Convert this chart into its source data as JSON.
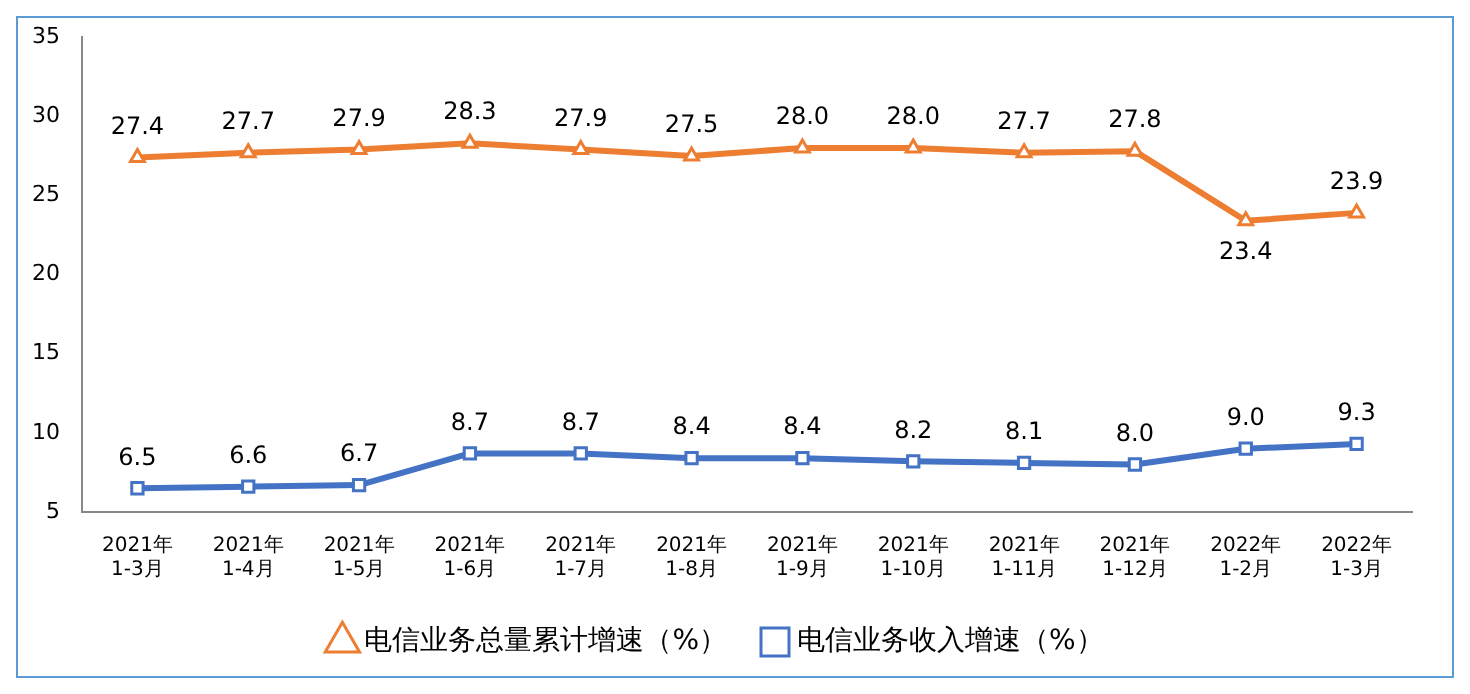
{
  "chart_data": {
    "type": "line",
    "categories": [
      "2021年\n1-3月",
      "2021年\n1-4月",
      "2021年\n1-5月",
      "2021年\n1-6月",
      "2021年\n1-7月",
      "2021年\n1-8月",
      "2021年\n1-9月",
      "2021年\n1-10月",
      "2021年\n1-11月",
      "2021年\n1-12月",
      "2022年\n1-2月",
      "2022年\n1-3月"
    ],
    "series": [
      {
        "name": "电信业务总量累计增速（%）",
        "color": "#ed7d31",
        "marker": "triangle",
        "values": [
          27.4,
          27.7,
          27.9,
          28.3,
          27.9,
          27.5,
          28.0,
          28.0,
          27.7,
          27.8,
          23.4,
          23.9
        ],
        "value_labels": [
          "27.4",
          "27.7",
          "27.9",
          "28.3",
          "27.9",
          "27.5",
          "28.0",
          "28.0",
          "27.7",
          "27.8",
          "23.4",
          "23.9"
        ]
      },
      {
        "name": "电信业务收入增速（%）",
        "color": "#4472c4",
        "marker": "square",
        "values": [
          6.5,
          6.6,
          6.7,
          8.7,
          8.7,
          8.4,
          8.4,
          8.2,
          8.1,
          8.0,
          9.0,
          9.3
        ],
        "value_labels": [
          "6.5",
          "6.6",
          "6.7",
          "8.7",
          "8.7",
          "8.4",
          "8.4",
          "8.2",
          "8.1",
          "8.0",
          "9.0",
          "9.3"
        ]
      }
    ],
    "ylim": [
      5,
      35
    ],
    "yticks": [
      5,
      10,
      15,
      20,
      25,
      30,
      35
    ],
    "grid": false,
    "legend": "bottom",
    "line_style": "solid"
  }
}
